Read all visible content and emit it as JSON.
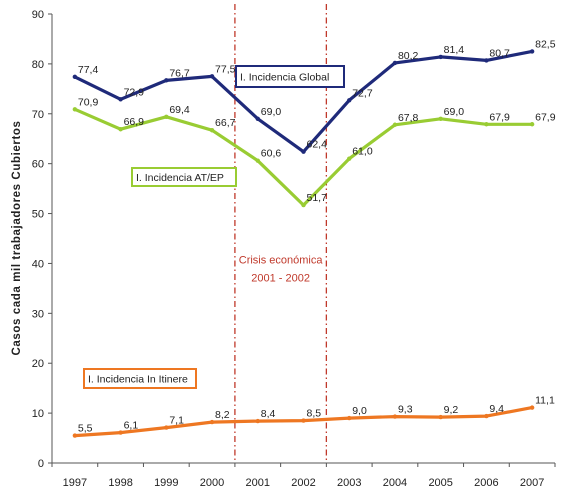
{
  "chart_data": {
    "type": "line",
    "title": "",
    "xlabel": "",
    "ylabel": "Casos cada mil trabajadores Cubiertos",
    "x": [
      "1997",
      "1998",
      "1999",
      "2000",
      "2001",
      "2002",
      "2003",
      "2004",
      "2005",
      "2006",
      "2007"
    ],
    "ylim": [
      0,
      90
    ],
    "yticks": [
      "0",
      "10",
      "20",
      "30",
      "40",
      "50",
      "60",
      "70",
      "80",
      "90"
    ],
    "grid": false,
    "series": [
      {
        "name": "I. Incidencia Global",
        "color": "#1f2a7a",
        "values": [
          77.4,
          72.9,
          76.7,
          77.5,
          69.0,
          62.4,
          72.7,
          80.2,
          81.4,
          80.7,
          82.5
        ],
        "labels": [
          "77,4",
          "72,9",
          "76,7",
          "77,5",
          "69,0",
          "62,4",
          "72,7",
          "80,2",
          "81,4",
          "80,7",
          "82,5"
        ]
      },
      {
        "name": "I. Incidencia AT/EP",
        "color": "#99cc33",
        "values": [
          70.9,
          66.9,
          69.4,
          66.7,
          60.6,
          51.7,
          61.0,
          67.8,
          69.0,
          67.9,
          67.9
        ],
        "labels": [
          "70,9",
          "66,9",
          "69,4",
          "66,7",
          "60,6",
          "51,7",
          "61,0",
          "67,8",
          "69,0",
          "67,9",
          "67,9"
        ]
      },
      {
        "name": "I. Incidencia In Itinere",
        "color": "#ee7722",
        "values": [
          5.5,
          6.1,
          7.1,
          8.2,
          8.4,
          8.5,
          9.0,
          9.3,
          9.2,
          9.4,
          11.1
        ],
        "labels": [
          "5,5",
          "6,1",
          "7,1",
          "8,2",
          "8,4",
          "8,5",
          "9,0",
          "9,3",
          "9,2",
          "9,4",
          "11,1"
        ]
      }
    ],
    "annotation": {
      "lines": [
        "Crisis económica",
        "2001 - 2002"
      ],
      "color": "#c0392b",
      "range": [
        "2001",
        "2002"
      ]
    }
  }
}
